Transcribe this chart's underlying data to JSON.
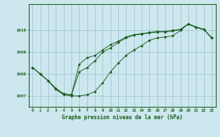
{
  "xlabel": "Graphe pression niveau de la mer (hPa)",
  "bg_color": "#cce8ee",
  "line_color": "#1a5c1a",
  "grid_color": "#99bbcc",
  "ylim": [
    1006.5,
    1011.2
  ],
  "xlim": [
    -0.5,
    23.5
  ],
  "yticks": [
    1007,
    1008,
    1009,
    1010
  ],
  "xticks": [
    0,
    1,
    2,
    3,
    4,
    5,
    6,
    7,
    8,
    9,
    10,
    11,
    12,
    13,
    14,
    15,
    16,
    17,
    18,
    19,
    20,
    21,
    22,
    23
  ],
  "series": [
    [
      1008.3,
      1008.0,
      1007.7,
      1007.3,
      1007.05,
      1007.0,
      1007.0,
      1007.05,
      1007.2,
      1007.6,
      1008.1,
      1008.5,
      1008.85,
      1009.1,
      1009.3,
      1009.55,
      1009.65,
      1009.7,
      1009.75,
      1010.0,
      1010.3,
      1010.15,
      1010.05,
      1009.65
    ],
    [
      1008.3,
      1008.0,
      1007.7,
      1007.3,
      1007.1,
      1007.05,
      1008.45,
      1008.75,
      1008.85,
      1009.1,
      1009.35,
      1009.5,
      1009.7,
      1009.8,
      1009.85,
      1009.9,
      1009.95,
      1009.95,
      1010.0,
      1010.05,
      1010.3,
      1010.15,
      1010.05,
      1009.65
    ],
    [
      1008.3,
      1008.0,
      1007.7,
      1007.35,
      1007.1,
      1007.05,
      1008.1,
      1008.3,
      1008.6,
      1009.0,
      1009.2,
      1009.45,
      1009.65,
      1009.78,
      1009.83,
      1009.88,
      1009.92,
      1009.93,
      1009.97,
      1010.03,
      1010.28,
      1010.13,
      1010.03,
      1009.65
    ]
  ]
}
